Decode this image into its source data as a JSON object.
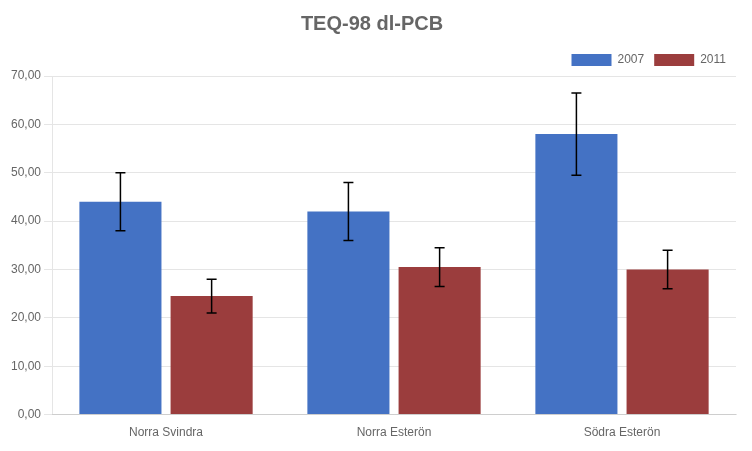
{
  "chart_data": {
    "type": "bar",
    "title": "TEQ-98 dl-PCB",
    "categories": [
      "Norra Svindra",
      "Norra Esterön",
      "Södra Esterön"
    ],
    "series": [
      {
        "name": "2007",
        "color": "#4472C4",
        "values": [
          44.0,
          42.0,
          58.0
        ],
        "errors": [
          6.0,
          6.0,
          8.5
        ]
      },
      {
        "name": "2011",
        "color": "#9B3D3D",
        "values": [
          24.5,
          30.5,
          30.0
        ],
        "errors": [
          3.5,
          4.0,
          4.0
        ]
      }
    ],
    "ylim": [
      0,
      70
    ],
    "yticks": [
      {
        "value": 0,
        "label": "0,00"
      },
      {
        "value": 10,
        "label": "10,00"
      },
      {
        "value": 20,
        "label": "20,00"
      },
      {
        "value": 30,
        "label": "30,00"
      },
      {
        "value": 40,
        "label": "40,00"
      },
      {
        "value": 50,
        "label": "50,00"
      },
      {
        "value": 60,
        "label": "60,00"
      },
      {
        "value": 70,
        "label": "70,00"
      }
    ],
    "grid": "y",
    "legend": "upper right"
  }
}
